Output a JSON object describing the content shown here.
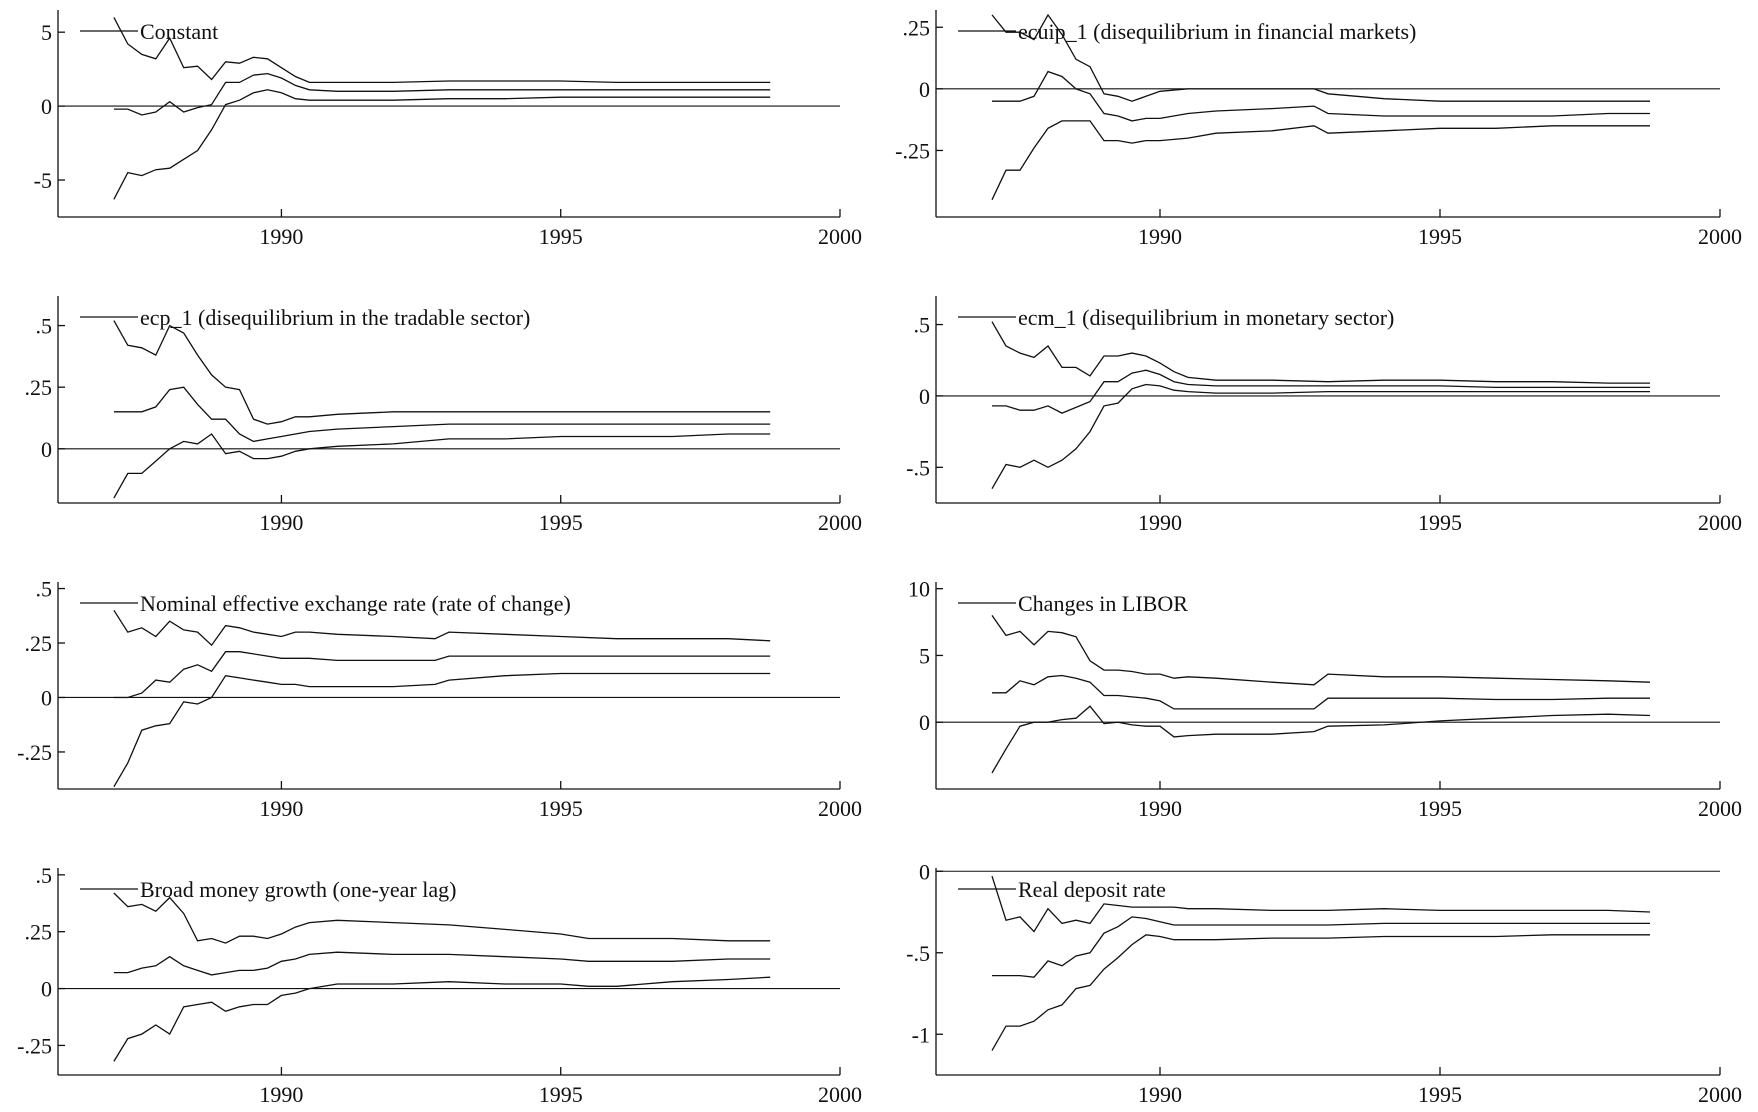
{
  "chart_data": [
    {
      "type": "line",
      "title": "Constant",
      "xlim": [
        1986,
        2000
      ],
      "ylim": [
        -7.5,
        6.5
      ],
      "x_ticks": [
        "1990",
        "1995",
        "2000"
      ],
      "y_ticks": [
        "5",
        "0",
        "-5"
      ],
      "y_tick_values": [
        5,
        0,
        -5
      ],
      "x": [
        1987.0,
        1987.25,
        1987.5,
        1987.75,
        1988.0,
        1988.25,
        1988.5,
        1988.75,
        1989.0,
        1989.25,
        1989.5,
        1989.75,
        1990.0,
        1990.25,
        1990.5,
        1991.0,
        1992.0,
        1993.0,
        1994.0,
        1995.0,
        1996.0,
        1997.0,
        1998.0,
        1998.75
      ],
      "series": [
        {
          "values": [
            6.0,
            4.2,
            3.5,
            3.2,
            4.6,
            2.6,
            2.7,
            1.8,
            3.0,
            2.9,
            3.3,
            3.2,
            2.6,
            2.0,
            1.6,
            1.6,
            1.6,
            1.7,
            1.7,
            1.7,
            1.6,
            1.6,
            1.6,
            1.6
          ]
        },
        {
          "values": [
            -0.2,
            -0.2,
            -0.6,
            -0.4,
            0.3,
            -0.4,
            -0.1,
            0.1,
            1.6,
            1.6,
            2.1,
            2.2,
            1.9,
            1.4,
            1.1,
            1.0,
            1.0,
            1.1,
            1.1,
            1.1,
            1.1,
            1.1,
            1.1,
            1.1
          ]
        },
        {
          "values": [
            -6.3,
            -4.5,
            -4.7,
            -4.3,
            -4.2,
            -3.6,
            -3.0,
            -1.6,
            0.1,
            0.4,
            0.9,
            1.1,
            0.9,
            0.5,
            0.4,
            0.4,
            0.4,
            0.5,
            0.5,
            0.6,
            0.6,
            0.6,
            0.6,
            0.6
          ]
        }
      ]
    },
    {
      "type": "line",
      "title": "ecuip_1 (disequilibrium in financial markets)",
      "xlim": [
        1986,
        2000
      ],
      "ylim": [
        -0.52,
        0.32
      ],
      "x_ticks": [
        "1990",
        "1995",
        "2000"
      ],
      "y_ticks": [
        ".25",
        "0",
        "-.25"
      ],
      "y_tick_values": [
        0.25,
        0,
        -0.25
      ],
      "x": [
        1987.0,
        1987.25,
        1987.5,
        1987.75,
        1988.0,
        1988.25,
        1988.5,
        1988.75,
        1989.0,
        1989.25,
        1989.5,
        1989.75,
        1990.0,
        1990.5,
        1991.0,
        1992.0,
        1992.75,
        1993.0,
        1994.0,
        1995.0,
        1996.0,
        1997.0,
        1998.0,
        1998.75
      ],
      "series": [
        {
          "values": [
            0.3,
            0.23,
            0.23,
            0.2,
            0.3,
            0.22,
            0.12,
            0.09,
            -0.02,
            -0.03,
            -0.05,
            -0.03,
            -0.01,
            0.0,
            0.0,
            0.0,
            0.0,
            -0.02,
            -0.04,
            -0.05,
            -0.05,
            -0.05,
            -0.05,
            -0.05
          ]
        },
        {
          "values": [
            -0.05,
            -0.05,
            -0.05,
            -0.03,
            0.07,
            0.05,
            0.0,
            -0.02,
            -0.1,
            -0.11,
            -0.13,
            -0.12,
            -0.12,
            -0.1,
            -0.09,
            -0.08,
            -0.07,
            -0.1,
            -0.11,
            -0.11,
            -0.11,
            -0.11,
            -0.1,
            -0.1
          ]
        },
        {
          "values": [
            -0.45,
            -0.33,
            -0.33,
            -0.24,
            -0.16,
            -0.13,
            -0.13,
            -0.13,
            -0.21,
            -0.21,
            -0.22,
            -0.21,
            -0.21,
            -0.2,
            -0.18,
            -0.17,
            -0.15,
            -0.18,
            -0.17,
            -0.16,
            -0.16,
            -0.15,
            -0.15,
            -0.15
          ]
        }
      ]
    },
    {
      "type": "line",
      "title": "ecp_1 (disequilibrium in the tradable sector)",
      "xlim": [
        1986,
        2000
      ],
      "ylim": [
        -0.22,
        0.62
      ],
      "x_ticks": [
        "1990",
        "1995",
        "2000"
      ],
      "y_ticks": [
        ".5",
        ".25",
        "0"
      ],
      "y_tick_values": [
        0.5,
        0.25,
        0
      ],
      "x": [
        1987.0,
        1987.25,
        1987.5,
        1987.75,
        1988.0,
        1988.25,
        1988.5,
        1988.75,
        1989.0,
        1989.25,
        1989.5,
        1989.75,
        1990.0,
        1990.25,
        1990.5,
        1991.0,
        1992.0,
        1993.0,
        1994.0,
        1995.0,
        1996.0,
        1997.0,
        1998.0,
        1998.75
      ],
      "series": [
        {
          "values": [
            0.52,
            0.42,
            0.41,
            0.38,
            0.5,
            0.47,
            0.38,
            0.3,
            0.25,
            0.24,
            0.12,
            0.1,
            0.11,
            0.13,
            0.13,
            0.14,
            0.15,
            0.15,
            0.15,
            0.15,
            0.15,
            0.15,
            0.15,
            0.15
          ]
        },
        {
          "values": [
            0.15,
            0.15,
            0.15,
            0.17,
            0.24,
            0.25,
            0.18,
            0.12,
            0.12,
            0.06,
            0.03,
            0.04,
            0.05,
            0.06,
            0.07,
            0.08,
            0.09,
            0.1,
            0.1,
            0.1,
            0.1,
            0.1,
            0.1,
            0.1
          ]
        },
        {
          "values": [
            -0.2,
            -0.1,
            -0.1,
            -0.05,
            0.0,
            0.03,
            0.02,
            0.06,
            -0.02,
            -0.01,
            -0.04,
            -0.04,
            -0.03,
            -0.01,
            0.0,
            0.01,
            0.02,
            0.04,
            0.04,
            0.05,
            0.05,
            0.05,
            0.06,
            0.06
          ]
        }
      ]
    },
    {
      "type": "line",
      "title": "ecm_1 (disequilibrium in monetary sector)",
      "xlim": [
        1986,
        2000
      ],
      "ylim": [
        -0.75,
        0.7
      ],
      "x_ticks": [
        "1990",
        "1995",
        "2000"
      ],
      "y_ticks": [
        ".5",
        "0",
        "-.5"
      ],
      "y_tick_values": [
        0.5,
        0,
        -0.5
      ],
      "x": [
        1987.0,
        1987.25,
        1987.5,
        1987.75,
        1988.0,
        1988.25,
        1988.5,
        1988.75,
        1989.0,
        1989.25,
        1989.5,
        1989.75,
        1990.0,
        1990.25,
        1990.5,
        1991.0,
        1992.0,
        1993.0,
        1994.0,
        1995.0,
        1996.0,
        1997.0,
        1998.0,
        1998.75
      ],
      "series": [
        {
          "values": [
            0.52,
            0.35,
            0.3,
            0.27,
            0.35,
            0.2,
            0.2,
            0.14,
            0.28,
            0.28,
            0.3,
            0.28,
            0.23,
            0.17,
            0.13,
            0.11,
            0.11,
            0.1,
            0.11,
            0.11,
            0.1,
            0.1,
            0.09,
            0.09
          ]
        },
        {
          "values": [
            -0.07,
            -0.07,
            -0.1,
            -0.1,
            -0.07,
            -0.12,
            -0.08,
            -0.04,
            0.1,
            0.1,
            0.16,
            0.18,
            0.15,
            0.1,
            0.08,
            0.07,
            0.07,
            0.07,
            0.07,
            0.07,
            0.06,
            0.06,
            0.06,
            0.06
          ]
        },
        {
          "values": [
            -0.65,
            -0.48,
            -0.5,
            -0.45,
            -0.5,
            -0.45,
            -0.37,
            -0.25,
            -0.07,
            -0.05,
            0.05,
            0.08,
            0.07,
            0.04,
            0.03,
            0.02,
            0.02,
            0.03,
            0.03,
            0.03,
            0.03,
            0.03,
            0.03,
            0.03
          ]
        }
      ]
    },
    {
      "type": "line",
      "title": "Nominal effective exchange rate (rate of change)",
      "xlim": [
        1986,
        2000
      ],
      "ylim": [
        -0.42,
        0.53
      ],
      "x_ticks": [
        "1990",
        "1995",
        "2000"
      ],
      "y_ticks": [
        ".5",
        ".25",
        "0",
        "-.25"
      ],
      "y_tick_values": [
        0.5,
        0.25,
        0,
        -0.25
      ],
      "x": [
        1987.0,
        1987.25,
        1987.5,
        1987.75,
        1988.0,
        1988.25,
        1988.5,
        1988.75,
        1989.0,
        1989.25,
        1989.5,
        1989.75,
        1990.0,
        1990.25,
        1990.5,
        1991.0,
        1992.0,
        1992.75,
        1993.0,
        1994.0,
        1995.0,
        1996.0,
        1997.0,
        1998.0,
        1998.75
      ],
      "series": [
        {
          "values": [
            0.4,
            0.3,
            0.32,
            0.28,
            0.35,
            0.31,
            0.3,
            0.24,
            0.33,
            0.32,
            0.3,
            0.29,
            0.28,
            0.3,
            0.3,
            0.29,
            0.28,
            0.27,
            0.3,
            0.29,
            0.28,
            0.27,
            0.27,
            0.27,
            0.26
          ]
        },
        {
          "values": [
            0.0,
            0.0,
            0.02,
            0.08,
            0.07,
            0.13,
            0.15,
            0.12,
            0.21,
            0.21,
            0.2,
            0.19,
            0.18,
            0.18,
            0.18,
            0.17,
            0.17,
            0.17,
            0.19,
            0.19,
            0.19,
            0.19,
            0.19,
            0.19,
            0.19
          ]
        },
        {
          "values": [
            -0.41,
            -0.3,
            -0.15,
            -0.13,
            -0.12,
            -0.02,
            -0.03,
            0.0,
            0.1,
            0.09,
            0.08,
            0.07,
            0.06,
            0.06,
            0.05,
            0.05,
            0.05,
            0.06,
            0.08,
            0.1,
            0.11,
            0.11,
            0.11,
            0.11,
            0.11
          ]
        }
      ]
    },
    {
      "type": "line",
      "title": "Changes in LIBOR",
      "xlim": [
        1986,
        2000
      ],
      "ylim": [
        -5.0,
        10.5
      ],
      "x_ticks": [
        "1990",
        "1995",
        "2000"
      ],
      "y_ticks": [
        "10",
        "5",
        "0"
      ],
      "y_tick_values": [
        10,
        5,
        0
      ],
      "x": [
        1987.0,
        1987.25,
        1987.5,
        1987.75,
        1988.0,
        1988.25,
        1988.5,
        1988.75,
        1989.0,
        1989.25,
        1989.5,
        1989.75,
        1990.0,
        1990.25,
        1990.5,
        1991.0,
        1992.0,
        1992.75,
        1993.0,
        1994.0,
        1995.0,
        1996.0,
        1997.0,
        1998.0,
        1998.75
      ],
      "series": [
        {
          "values": [
            8.0,
            6.5,
            6.8,
            5.8,
            6.8,
            6.7,
            6.4,
            4.6,
            3.9,
            3.9,
            3.8,
            3.6,
            3.6,
            3.3,
            3.4,
            3.3,
            3.0,
            2.8,
            3.6,
            3.4,
            3.4,
            3.3,
            3.2,
            3.1,
            3.0
          ]
        },
        {
          "values": [
            2.2,
            2.2,
            3.1,
            2.8,
            3.4,
            3.5,
            3.3,
            3.0,
            2.0,
            2.0,
            1.9,
            1.8,
            1.6,
            1.0,
            1.0,
            1.0,
            1.0,
            1.0,
            1.8,
            1.8,
            1.8,
            1.7,
            1.7,
            1.8,
            1.8
          ]
        },
        {
          "values": [
            -3.8,
            -2.0,
            -0.3,
            0.0,
            0.0,
            0.2,
            0.3,
            1.2,
            -0.1,
            0.0,
            -0.2,
            -0.3,
            -0.3,
            -1.1,
            -1.0,
            -0.9,
            -0.9,
            -0.7,
            -0.3,
            -0.2,
            0.1,
            0.3,
            0.5,
            0.6,
            0.5
          ]
        }
      ]
    },
    {
      "type": "line",
      "title": "Broad money growth (one-year lag)",
      "xlim": [
        1986,
        2000
      ],
      "ylim": [
        -0.38,
        0.53
      ],
      "x_ticks": [
        "1990",
        "1995",
        "2000"
      ],
      "y_ticks": [
        ".5",
        ".25",
        "0",
        "-.25"
      ],
      "y_tick_values": [
        0.5,
        0.25,
        0,
        -0.25
      ],
      "x": [
        1987.0,
        1987.25,
        1987.5,
        1987.75,
        1988.0,
        1988.25,
        1988.5,
        1988.75,
        1989.0,
        1989.25,
        1989.5,
        1989.75,
        1990.0,
        1990.25,
        1990.5,
        1991.0,
        1992.0,
        1993.0,
        1994.0,
        1995.0,
        1995.5,
        1996.0,
        1997.0,
        1998.0,
        1998.75
      ],
      "series": [
        {
          "values": [
            0.42,
            0.36,
            0.37,
            0.34,
            0.4,
            0.33,
            0.21,
            0.22,
            0.2,
            0.23,
            0.23,
            0.22,
            0.24,
            0.27,
            0.29,
            0.3,
            0.29,
            0.28,
            0.26,
            0.24,
            0.22,
            0.22,
            0.22,
            0.21,
            0.21
          ]
        },
        {
          "values": [
            0.07,
            0.07,
            0.09,
            0.1,
            0.14,
            0.1,
            0.08,
            0.06,
            0.07,
            0.08,
            0.08,
            0.09,
            0.12,
            0.13,
            0.15,
            0.16,
            0.15,
            0.15,
            0.14,
            0.13,
            0.12,
            0.12,
            0.12,
            0.13,
            0.13
          ]
        },
        {
          "values": [
            -0.32,
            -0.22,
            -0.2,
            -0.16,
            -0.2,
            -0.08,
            -0.07,
            -0.06,
            -0.1,
            -0.08,
            -0.07,
            -0.07,
            -0.03,
            -0.02,
            0.0,
            0.02,
            0.02,
            0.03,
            0.02,
            0.02,
            0.01,
            0.01,
            0.03,
            0.04,
            0.05
          ]
        }
      ]
    },
    {
      "type": "line",
      "title": "Real deposit rate",
      "xlim": [
        1986,
        2000
      ],
      "ylim": [
        -1.25,
        0.02
      ],
      "x_ticks": [
        "1990",
        "1995",
        "2000"
      ],
      "y_ticks": [
        "0",
        "-.5",
        "-1"
      ],
      "y_tick_values": [
        0,
        -0.5,
        -1
      ],
      "x": [
        1987.0,
        1987.25,
        1987.5,
        1987.75,
        1988.0,
        1988.25,
        1988.5,
        1988.75,
        1989.0,
        1989.25,
        1989.5,
        1989.75,
        1990.0,
        1990.25,
        1990.5,
        1991.0,
        1992.0,
        1993.0,
        1994.0,
        1995.0,
        1996.0,
        1997.0,
        1998.0,
        1998.75
      ],
      "series": [
        {
          "values": [
            -0.03,
            -0.3,
            -0.28,
            -0.37,
            -0.23,
            -0.32,
            -0.3,
            -0.32,
            -0.2,
            -0.21,
            -0.22,
            -0.22,
            -0.22,
            -0.22,
            -0.23,
            -0.23,
            -0.24,
            -0.24,
            -0.23,
            -0.24,
            -0.24,
            -0.24,
            -0.24,
            -0.25
          ]
        },
        {
          "values": [
            -0.64,
            -0.64,
            -0.64,
            -0.65,
            -0.55,
            -0.58,
            -0.52,
            -0.5,
            -0.38,
            -0.34,
            -0.28,
            -0.29,
            -0.31,
            -0.33,
            -0.33,
            -0.33,
            -0.33,
            -0.33,
            -0.32,
            -0.32,
            -0.32,
            -0.32,
            -0.32,
            -0.32
          ]
        },
        {
          "values": [
            -1.1,
            -0.95,
            -0.95,
            -0.92,
            -0.85,
            -0.82,
            -0.72,
            -0.7,
            -0.6,
            -0.53,
            -0.45,
            -0.39,
            -0.4,
            -0.42,
            -0.42,
            -0.42,
            -0.41,
            -0.41,
            -0.4,
            -0.4,
            -0.4,
            -0.39,
            -0.39,
            -0.39
          ]
        }
      ]
    }
  ]
}
